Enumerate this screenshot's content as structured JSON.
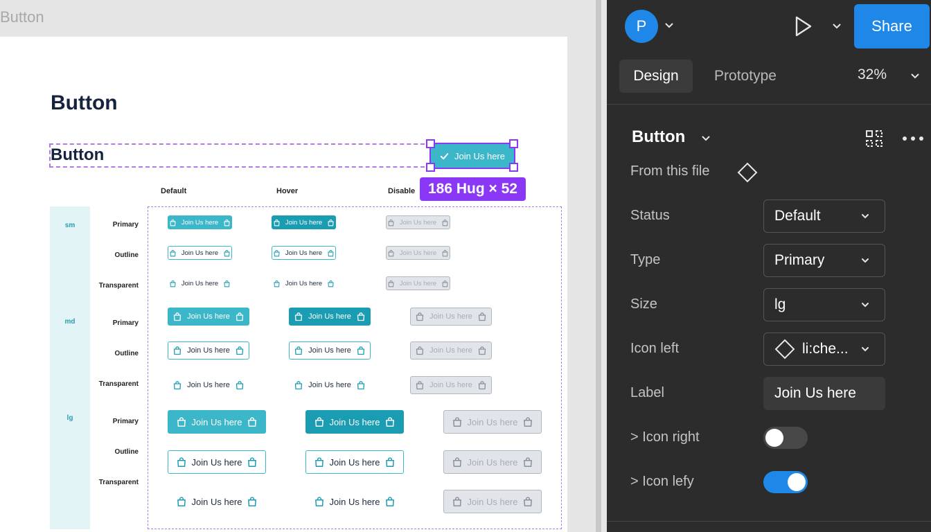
{
  "canvas": {
    "frame_label": "Button",
    "page_title": "Button",
    "component_title": "Button",
    "selected_instance_label": "Join Us here",
    "size_badge": "186 Hug × 52",
    "columns": [
      "Default",
      "Hover",
      "Disable"
    ],
    "sizes": [
      "sm",
      "md",
      "lg"
    ],
    "rows": [
      {
        "size": "sm",
        "type": "Primary"
      },
      {
        "size": "sm",
        "type": "Outline"
      },
      {
        "size": "sm",
        "type": "Transparent"
      },
      {
        "size": "md",
        "type": "Primary"
      },
      {
        "size": "md",
        "type": "Outline"
      },
      {
        "size": "md",
        "type": "Transparent"
      },
      {
        "size": "lg",
        "type": "Primary"
      },
      {
        "size": "lg",
        "type": "Outline"
      },
      {
        "size": "lg",
        "type": "Transparent"
      }
    ],
    "button_label": "Join Us here",
    "icon": "shopping-bag-icon"
  },
  "panel": {
    "avatar_initial": "P",
    "share_label": "Share",
    "tabs": [
      "Design",
      "Prototype"
    ],
    "zoom": "32%",
    "component_name": "Button",
    "source": "From this file",
    "properties": {
      "status": {
        "label": "Status",
        "value": "Default"
      },
      "type": {
        "label": "Type",
        "value": "Primary"
      },
      "size": {
        "label": "Size",
        "value": "lg"
      },
      "icon_left": {
        "label": "Icon left",
        "value": "li:che..."
      },
      "label": {
        "label": "Label",
        "value": "Join Us here"
      },
      "icon_right": {
        "label": "> Icon right",
        "on": false
      },
      "icon_lefy": {
        "label": "> Icon lefy",
        "on": true
      }
    }
  },
  "colors": {
    "accent": "#1f87e8",
    "selection": "#8a38f5",
    "button_primary": "#3cb6c9",
    "button_hover": "#1a9db2",
    "panel_bg": "#2c2c2c"
  }
}
